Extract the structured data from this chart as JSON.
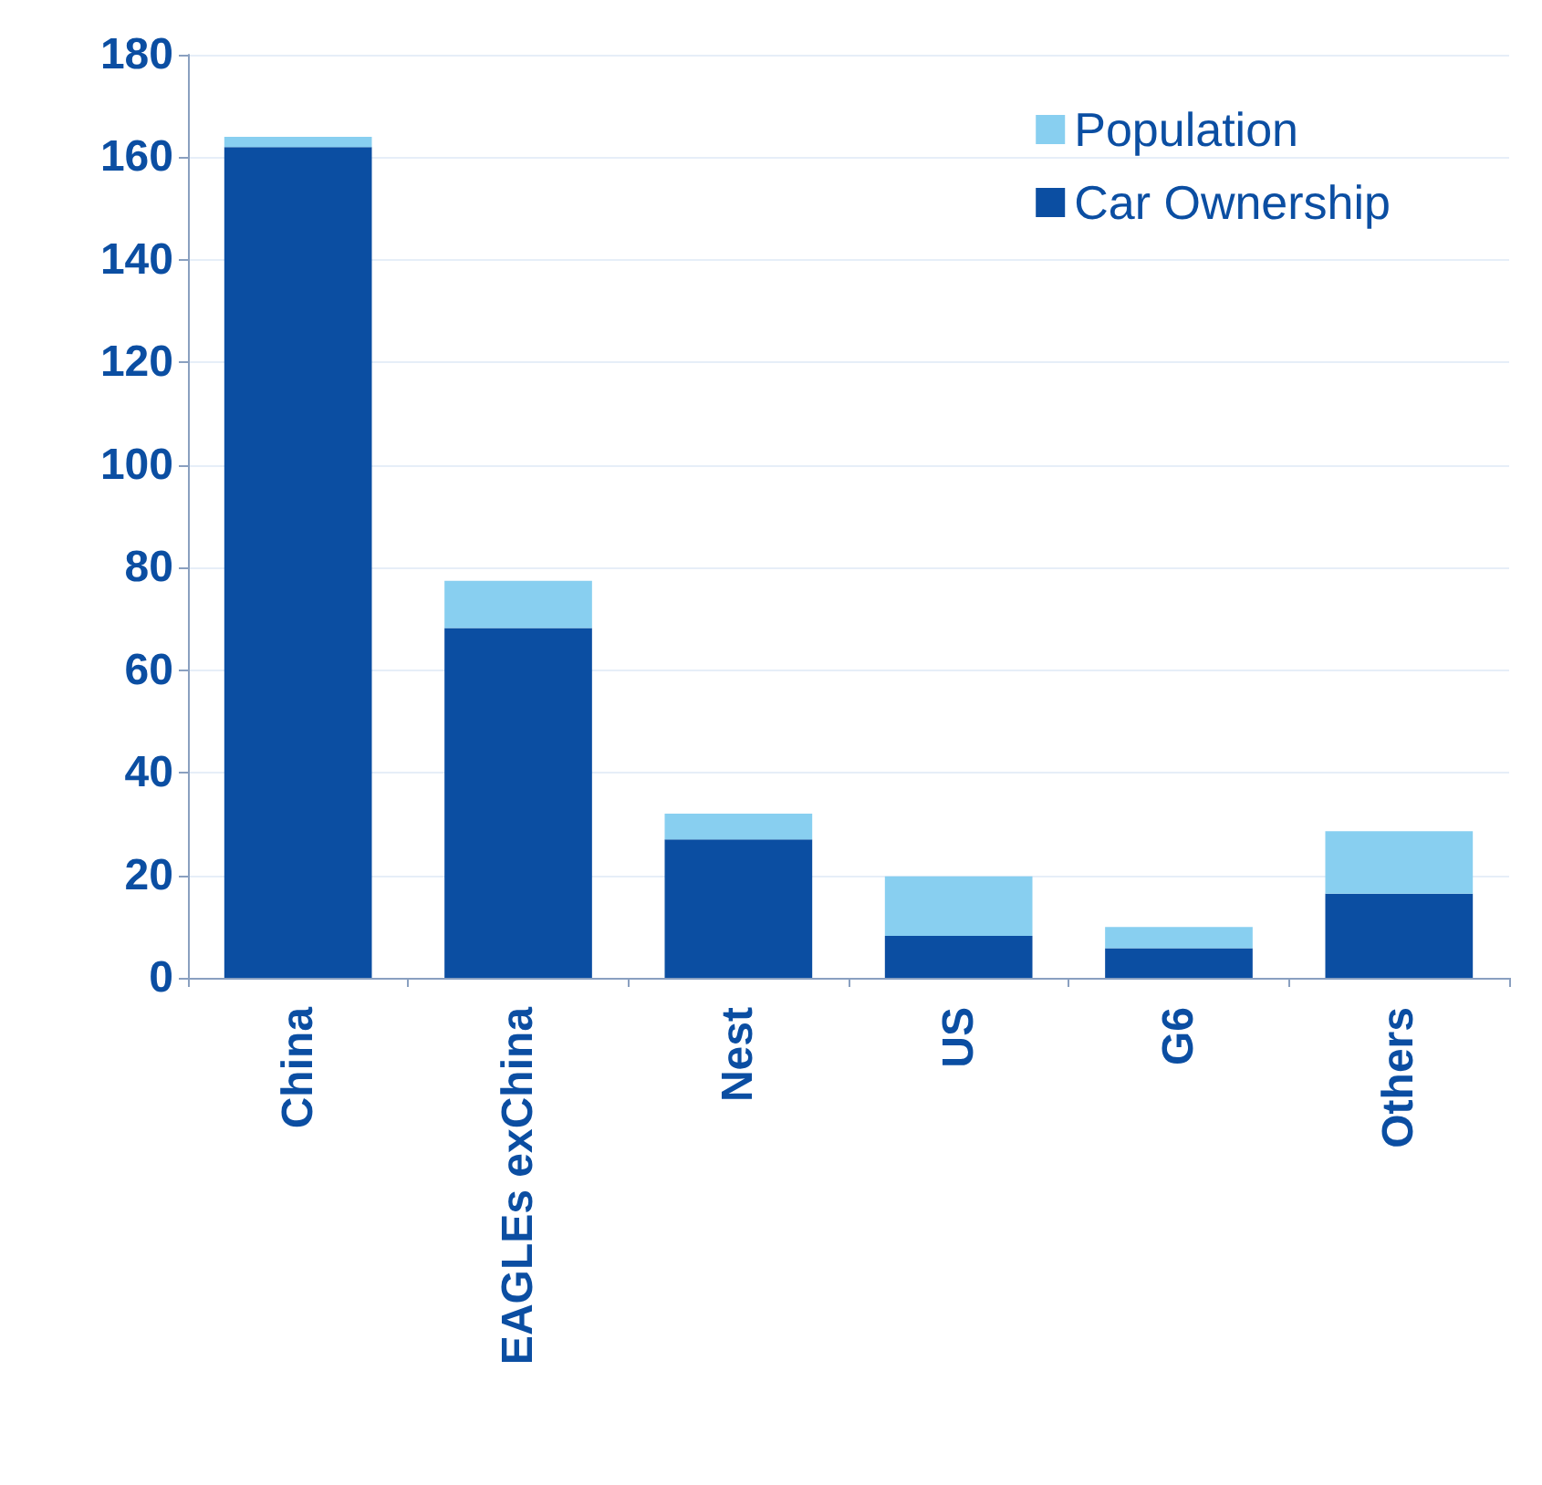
{
  "chart_data": {
    "type": "bar",
    "stacked": true,
    "categories": [
      "China",
      "EAGLEs exChina",
      "Nest",
      "US",
      "G6",
      "Others"
    ],
    "series": [
      {
        "name": "Car Ownership",
        "color": "#0b4ea2",
        "values": [
          162,
          68.2,
          27,
          8.2,
          5.8,
          16.4
        ]
      },
      {
        "name": "Population",
        "color": "#88cff0",
        "values": [
          2,
          9.2,
          5,
          11.6,
          4.1,
          12.2
        ]
      }
    ],
    "ylim": [
      0,
      180
    ],
    "yticks": [
      0,
      20,
      40,
      60,
      80,
      100,
      120,
      140,
      160,
      180
    ],
    "grid": "y",
    "legend": "top right"
  }
}
